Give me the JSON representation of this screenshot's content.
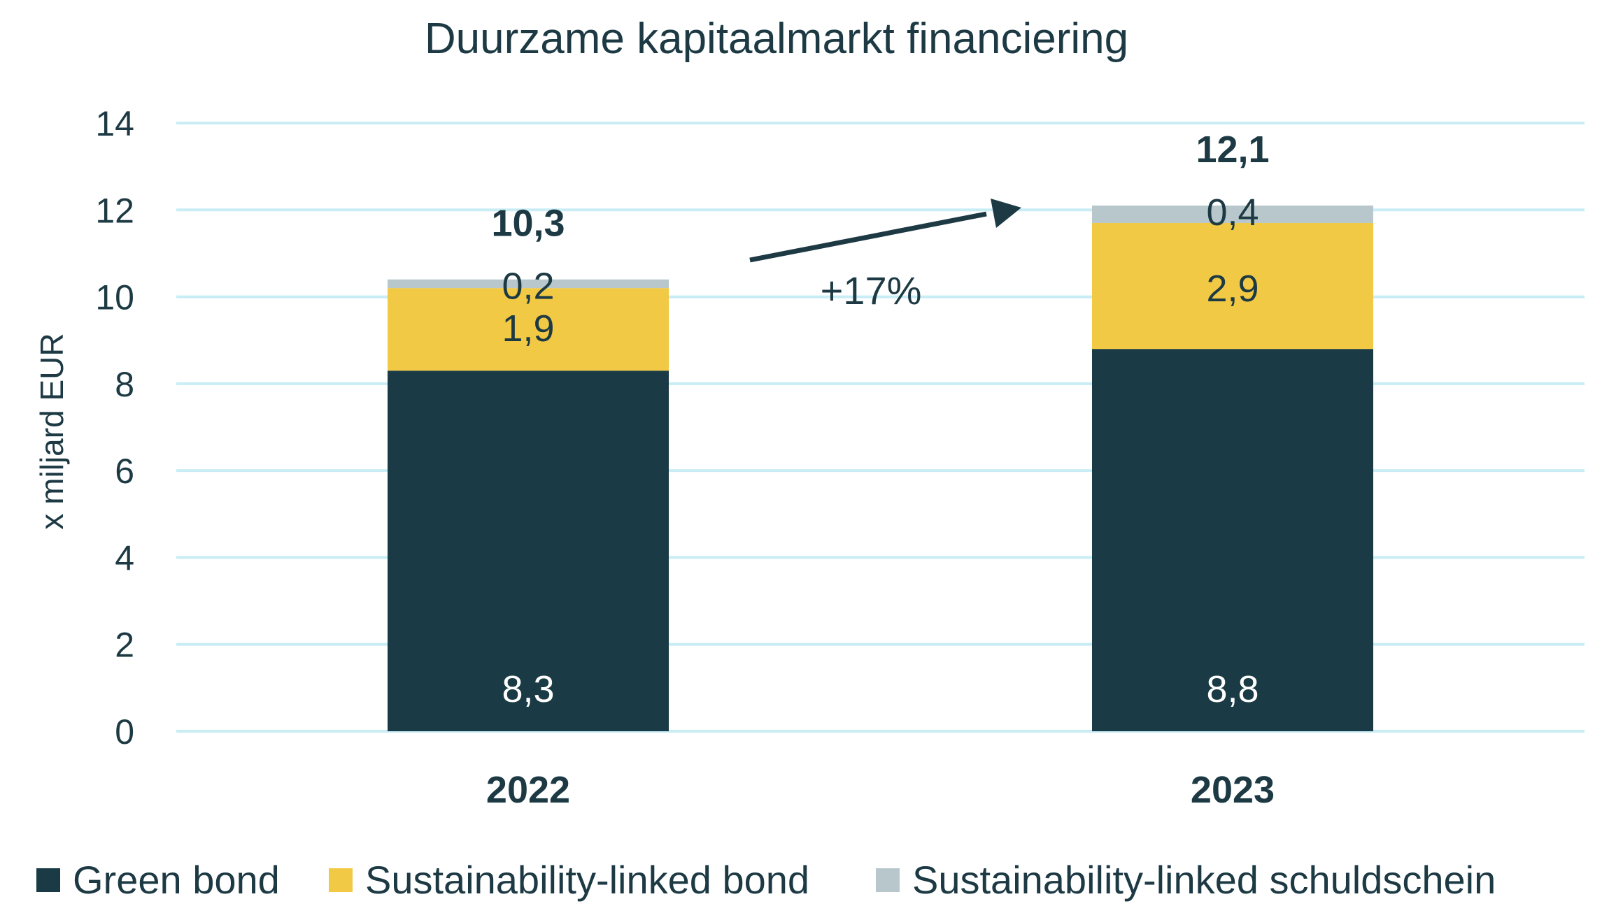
{
  "chart_data": {
    "type": "bar",
    "stacked": true,
    "title": "Duurzame kapitaalmarkt financiering",
    "ylabel": "x miljard EUR",
    "xlabel": "",
    "ylim": [
      0,
      14
    ],
    "yticks": [
      0,
      2,
      4,
      6,
      8,
      10,
      12,
      14
    ],
    "grid": true,
    "legend_position": "bottom",
    "categories": [
      "2022",
      "2023"
    ],
    "series": [
      {
        "name": "Green bond",
        "values": [
          8.3,
          8.8
        ],
        "labels": [
          "8,3",
          "8,8"
        ],
        "color": "#1a3b45",
        "label_color": "#ffffff"
      },
      {
        "name": "Sustainability-linked bond",
        "values": [
          1.9,
          2.9
        ],
        "labels": [
          "1,9",
          "2,9"
        ],
        "color": "#f2c944",
        "label_color": "#1d3a44"
      },
      {
        "name": "Sustainability-linked schuldschein",
        "values": [
          0.2,
          0.4
        ],
        "labels": [
          "0,2",
          "0,4"
        ],
        "color": "#b7c7cb",
        "label_color": "#1d3a44"
      }
    ],
    "totals": [
      "10,3",
      "12,1"
    ],
    "annotation": {
      "text": "+17%"
    },
    "colors": {
      "text": "#1d3a44",
      "grid": "#c8edf5",
      "arrow": "#1d3a44"
    }
  }
}
